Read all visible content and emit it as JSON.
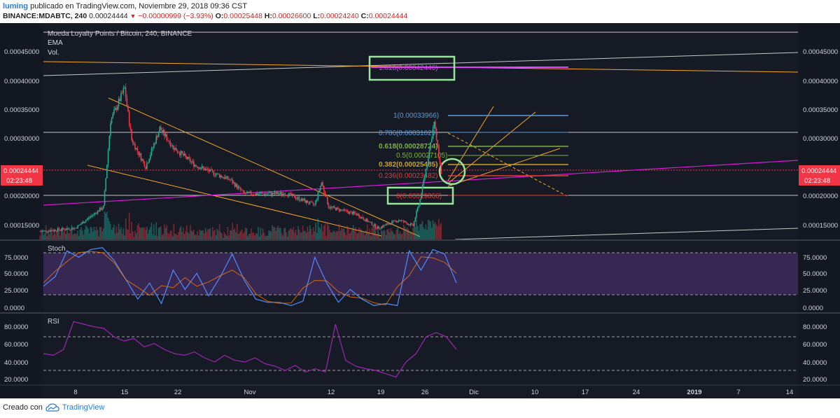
{
  "header": {
    "user": "luming",
    "published_text": "publicado en TradingView.com, Noviembre 29, 2018 09:36 CST",
    "symbol": "BINANCE:MDABTC, 240",
    "last": "0.00024444",
    "change": "−0.00000999 (−3.93%)",
    "o_label": "O:",
    "o_value": "0.00025448",
    "h_label": "H:",
    "h_value": "0.00026600",
    "l_label": "L:",
    "l_value": "0.00024240",
    "c_label": "C:",
    "c_value": "0.00024444"
  },
  "legend": {
    "title": "Moeda Loyalty Points / Bitcoin, 240, BINANCE",
    "ema": "EMA",
    "vol": "Vol.",
    "stoch": "Stoch",
    "rsi": "RSI"
  },
  "price_axis": {
    "ticks": [
      "0.00045000",
      "0.00040000",
      "0.00035000",
      "0.00030000",
      "0.00020000",
      "0.00015000"
    ],
    "current_price": "0.00024444",
    "countdown": "02:23:48"
  },
  "stoch_axis": {
    "ticks": [
      "75.0000",
      "50.0000",
      "25.0000",
      "0.0000"
    ]
  },
  "rsi_axis": {
    "ticks": [
      "80.0000",
      "60.0000",
      "40.0000",
      "20.0000"
    ]
  },
  "x_axis": {
    "ticks": [
      "8",
      "15",
      "22",
      "Nov",
      "12",
      "19",
      "26",
      "Dic",
      "10",
      "17",
      "24",
      "2019",
      "7",
      "14"
    ]
  },
  "fib_labels": {
    "f1618": "1.618(0.00042446)",
    "f1": "1(0.00033966)",
    "f0786": "0.786(0.00031029)",
    "f0618": "0.618(0.00028724)",
    "f05": "0.5(0.00027105)",
    "f0382": "0.382(0.00025485)",
    "f0236": "0.236(0.00023482)",
    "f0": "0(0.00019866)"
  },
  "footer": {
    "created": "Creado con",
    "brand": "TradingView"
  },
  "colors": {
    "bg": "#161a25",
    "up": "#22ab94",
    "down": "#f23645",
    "accent": "#e040fb",
    "orange": "#f5a623",
    "fib1": "#5b9bd5",
    "fib618": "#7cb342",
    "fib382": "#c9a227",
    "fib236": "#e53935",
    "highlight": "#98e89b",
    "stoch": "#4f8cff",
    "rsi": "#9c27b0"
  },
  "chart_data": [
    {
      "type": "candlestick",
      "title": "Moeda Loyalty Points / Bitcoin, 240, BINANCE",
      "ylim": [
        0.000128,
        0.00049
      ],
      "x_ticks": [
        "8",
        "15",
        "22",
        "Nov",
        "12",
        "19",
        "26",
        "Dic",
        "10",
        "17",
        "24",
        "2019",
        "7",
        "14"
      ],
      "price_path": [
        {
          "x": "Oct 3",
          "y": 0.000142
        },
        {
          "x": "Oct 8",
          "y": 0.000148
        },
        {
          "x": "Oct 12",
          "y": 0.000185
        },
        {
          "x": "Oct 13",
          "y": 0.000335
        },
        {
          "x": "Oct 15",
          "y": 0.000392
        },
        {
          "x": "Oct 16",
          "y": 0.000302
        },
        {
          "x": "Oct 18",
          "y": 0.000255
        },
        {
          "x": "Oct 20",
          "y": 0.000322
        },
        {
          "x": "Oct 22",
          "y": 0.000288
        },
        {
          "x": "Oct 25",
          "y": 0.000258
        },
        {
          "x": "Oct 30",
          "y": 0.000232
        },
        {
          "x": "Nov 1",
          "y": 0.000208
        },
        {
          "x": "Nov 7",
          "y": 0.000208
        },
        {
          "x": "Nov 11",
          "y": 0.000188
        },
        {
          "x": "Nov 12",
          "y": 0.000228
        },
        {
          "x": "Nov 13",
          "y": 0.000185
        },
        {
          "x": "Nov 17",
          "y": 0.000172
        },
        {
          "x": "Nov 20",
          "y": 0.000148
        },
        {
          "x": "Nov 23",
          "y": 0.000162
        },
        {
          "x": "Nov 25",
          "y": 0.000152
        },
        {
          "x": "Nov 26",
          "y": 0.000198
        },
        {
          "x": "Nov 27",
          "y": 0.000262
        },
        {
          "x": "Nov 28",
          "y": 0.000332
        },
        {
          "x": "Nov 29",
          "y": 0.00024444
        }
      ],
      "fib_retracement": [
        {
          "level": "1.618",
          "price": 0.00042446
        },
        {
          "level": "1",
          "price": 0.00033966
        },
        {
          "level": "0.786",
          "price": 0.00031029
        },
        {
          "level": "0.618",
          "price": 0.00028724
        },
        {
          "level": "0.5",
          "price": 0.00027105
        },
        {
          "level": "0.382",
          "price": 0.00025485
        },
        {
          "level": "0.236",
          "price": 0.00023482
        },
        {
          "level": "0",
          "price": 0.00019866
        }
      ],
      "last_price": 0.00024444
    },
    {
      "type": "line",
      "title": "Stoch",
      "ylim": [
        0,
        100
      ],
      "bands": [
        80,
        20
      ],
      "y_ticks": [
        "75.0000",
        "50.0000",
        "25.0000",
        "0.0000"
      ],
      "values": [
        35,
        50,
        90,
        80,
        92,
        95,
        75,
        45,
        15,
        40,
        8,
        60,
        30,
        55,
        20,
        50,
        85,
        45,
        15,
        10,
        10,
        5,
        12,
        80,
        40,
        10,
        30,
        15,
        5,
        8,
        5,
        90,
        60,
        92,
        85,
        40
      ]
    },
    {
      "type": "line",
      "title": "RSI",
      "ylim": [
        15,
        95
      ],
      "bands": [
        70,
        30
      ],
      "y_ticks": [
        "80.0000",
        "60.0000",
        "40.0000",
        "20.0000"
      ],
      "values": [
        50,
        48,
        55,
        88,
        85,
        82,
        80,
        70,
        65,
        68,
        58,
        62,
        55,
        50,
        48,
        52,
        45,
        40,
        48,
        42,
        40,
        45,
        38,
        35,
        30,
        36,
        28,
        32,
        28,
        85,
        42,
        35,
        32,
        30,
        26,
        22,
        40,
        50,
        70,
        75,
        70,
        55
      ]
    }
  ]
}
